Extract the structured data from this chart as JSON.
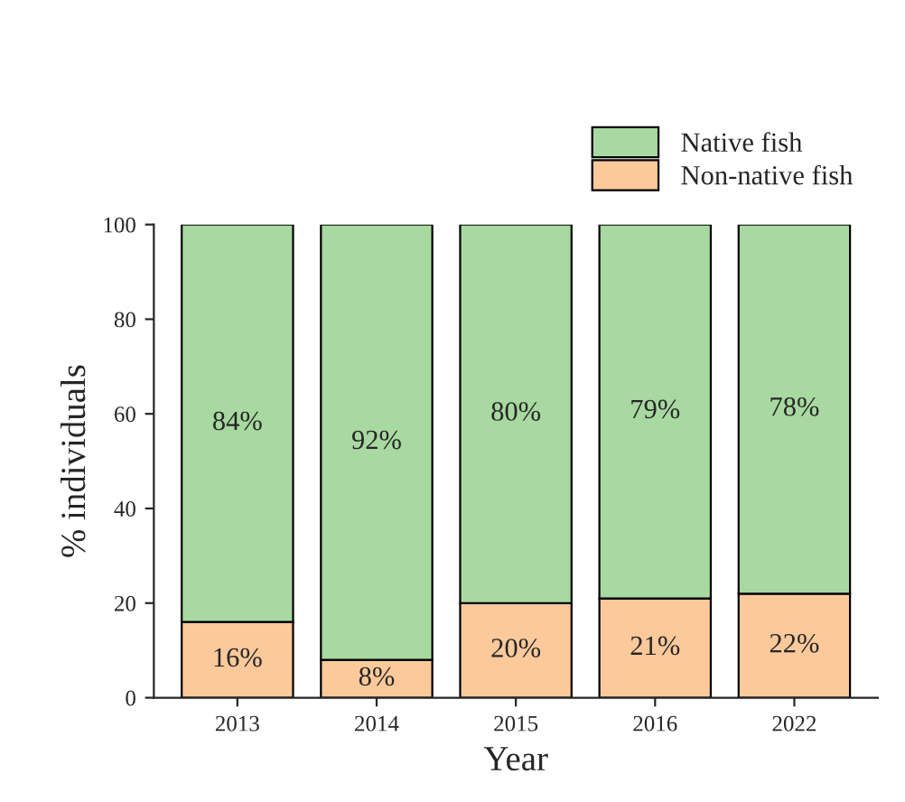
{
  "chart_data": {
    "type": "bar",
    "stacked": true,
    "xlabel": "Year",
    "ylabel": "% individuals",
    "categories": [
      "2013",
      "2014",
      "2015",
      "2016",
      "2022"
    ],
    "series": [
      {
        "name": "Non-native fish",
        "color": "#fcc99b",
        "values": [
          16,
          8,
          20,
          21,
          22
        ],
        "value_labels": [
          "16%",
          "8%",
          "20%",
          "21%",
          "22%"
        ]
      },
      {
        "name": "Native fish",
        "color": "#a8d9a0",
        "values": [
          84,
          92,
          80,
          79,
          78
        ],
        "value_labels": [
          "84%",
          "92%",
          "80%",
          "79%",
          "78%"
        ]
      }
    ],
    "ylim": [
      0,
      100
    ],
    "yticks": [
      0,
      20,
      40,
      60,
      80,
      100
    ],
    "legend": "top right",
    "grid": false
  }
}
